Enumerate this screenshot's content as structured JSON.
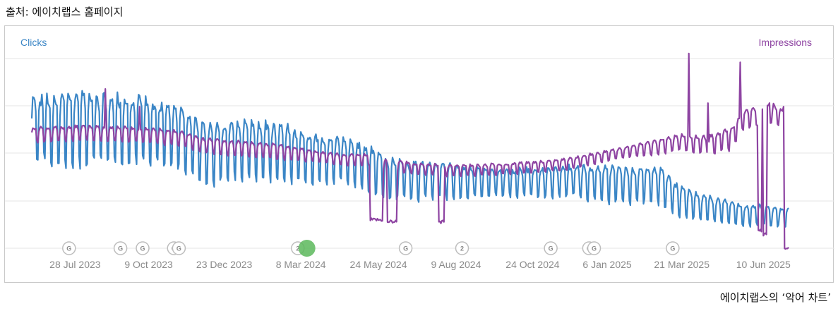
{
  "source_text": "출처: 에이치랩스 홈페이지",
  "caption_text": "에이치랩스의 ‘악어 차트’",
  "chart_data": {
    "type": "line",
    "x_start": "2023-06-15",
    "x_end": "2025-07-05",
    "left_axis_title": "Clicks",
    "right_axis_title": "Impressions",
    "colors": {
      "clicks": "#3b86c6",
      "impressions": "#8e44a2",
      "grid": "#e6e6e6",
      "marker_green": "#5cb85c"
    },
    "x_tick_labels": [
      "28 Jul 2023",
      "9 Oct 2023",
      "23 Dec 2023",
      "8 Mar 2024",
      "24 May 2024",
      "9 Aug 2024",
      "24 Oct 2024",
      "6 Jan 2025",
      "21 Mar 2025",
      "10 Jun 2025"
    ],
    "x_tick_dates": [
      "2023-07-28",
      "2023-10-09",
      "2023-12-23",
      "2024-03-08",
      "2024-05-24",
      "2024-08-09",
      "2024-10-24",
      "2025-01-06",
      "2025-03-21",
      "2025-06-10"
    ],
    "y_range_normalized": [
      0,
      1
    ],
    "gridlines": 4,
    "series": [
      {
        "name": "Clicks",
        "axis": "left",
        "note": "weekly oscillating series; normalized 0-1 scale (axis values not shown)",
        "dates": [
          "2023-06-15",
          "2023-08-01",
          "2023-10-01",
          "2023-11-10",
          "2023-12-01",
          "2024-01-15",
          "2024-02-20",
          "2024-03-20",
          "2024-04-20",
          "2024-05-15",
          "2024-06-01",
          "2024-07-01",
          "2024-08-01",
          "2024-09-01",
          "2024-10-01",
          "2024-11-01",
          "2024-12-01",
          "2025-01-05",
          "2025-02-01",
          "2025-02-25",
          "2025-03-20",
          "2025-04-15",
          "2025-05-10",
          "2025-05-20",
          "2025-06-05",
          "2025-06-20",
          "2025-07-01"
        ],
        "base": [
          0.67,
          0.67,
          0.66,
          0.62,
          0.53,
          0.55,
          0.54,
          0.51,
          0.49,
          0.45,
          0.39,
          0.38,
          0.38,
          0.37,
          0.37,
          0.37,
          0.38,
          0.36,
          0.35,
          0.36,
          0.26,
          0.22,
          0.2,
          0.18,
          0.19,
          0.18,
          0.17
        ],
        "amplitude": [
          0.18,
          0.19,
          0.18,
          0.16,
          0.16,
          0.15,
          0.15,
          0.13,
          0.12,
          0.12,
          0.11,
          0.1,
          0.1,
          0.08,
          0.07,
          0.08,
          0.08,
          0.1,
          0.09,
          0.1,
          0.08,
          0.07,
          0.06,
          0.06,
          0.05,
          0.05,
          0.05
        ]
      },
      {
        "name": "Impressions",
        "axis": "right",
        "note": "oscillating series with dropouts; normalized 0-1 scale",
        "dates": [
          "2023-06-15",
          "2023-08-01",
          "2023-10-01",
          "2023-11-10",
          "2023-12-01",
          "2024-01-15",
          "2024-02-20",
          "2024-03-20",
          "2024-04-20",
          "2024-05-15",
          "2024-06-01",
          "2024-07-01",
          "2024-08-01",
          "2024-09-01",
          "2024-10-01",
          "2024-11-01",
          "2024-12-01",
          "2025-01-05",
          "2025-02-01",
          "2025-02-25",
          "2025-03-20",
          "2025-04-15",
          "2025-05-10",
          "2025-05-20",
          "2025-06-05",
          "2025-06-20",
          "2025-07-01"
        ],
        "base": [
          0.64,
          0.65,
          0.64,
          0.62,
          0.58,
          0.56,
          0.54,
          0.52,
          0.5,
          0.5,
          0.47,
          0.45,
          0.44,
          0.44,
          0.45,
          0.46,
          0.48,
          0.52,
          0.55,
          0.57,
          0.6,
          0.58,
          0.62,
          0.72,
          0.75,
          0.76,
          0.72
        ],
        "amplitude": [
          0.04,
          0.04,
          0.04,
          0.04,
          0.04,
          0.04,
          0.04,
          0.03,
          0.03,
          0.03,
          0.03,
          0.03,
          0.03,
          0.03,
          0.03,
          0.03,
          0.03,
          0.03,
          0.03,
          0.04,
          0.04,
          0.05,
          0.06,
          0.05,
          0.05,
          0.05,
          0.05
        ],
        "dropouts": [
          {
            "from": "2024-05-16",
            "to": "2024-05-28",
            "value": 0.16
          },
          {
            "from": "2024-06-02",
            "to": "2024-06-11",
            "value": 0.15
          },
          {
            "from": "2024-07-23",
            "to": "2024-07-28",
            "value": 0.15
          },
          {
            "from": "2025-06-05",
            "to": "2025-06-08",
            "value": 0.1
          },
          {
            "from": "2025-06-10",
            "to": "2025-06-13",
            "value": 0.08
          },
          {
            "from": "2025-06-30",
            "to": "2025-07-05",
            "value": 0.0
          }
        ],
        "spikes": [
          {
            "date": "2023-08-27",
            "value": 0.9
          },
          {
            "date": "2023-09-30",
            "value": 0.8
          },
          {
            "date": "2025-03-28",
            "value": 1.1
          },
          {
            "date": "2025-04-16",
            "value": 0.82
          },
          {
            "date": "2025-05-18",
            "value": 1.05
          },
          {
            "date": "2025-06-16",
            "value": 0.82
          },
          {
            "date": "2025-06-30",
            "value": 0.8
          }
        ]
      }
    ],
    "annotations": [
      {
        "date": "2023-07-22",
        "label": "G"
      },
      {
        "date": "2023-09-11",
        "label": "G"
      },
      {
        "date": "2023-10-03",
        "label": "G"
      },
      {
        "date": "2023-11-03",
        "label": "G"
      },
      {
        "date": "2023-11-08",
        "label": "G"
      },
      {
        "date": "2024-03-05",
        "label": "2"
      },
      {
        "date": "2024-03-14",
        "label": "",
        "highlight": true
      },
      {
        "date": "2024-06-20",
        "label": "G"
      },
      {
        "date": "2024-08-15",
        "label": "2"
      },
      {
        "date": "2024-11-11",
        "label": "G"
      },
      {
        "date": "2024-12-19",
        "label": "G"
      },
      {
        "date": "2024-12-24",
        "label": "G"
      },
      {
        "date": "2025-03-12",
        "label": "G"
      }
    ]
  }
}
